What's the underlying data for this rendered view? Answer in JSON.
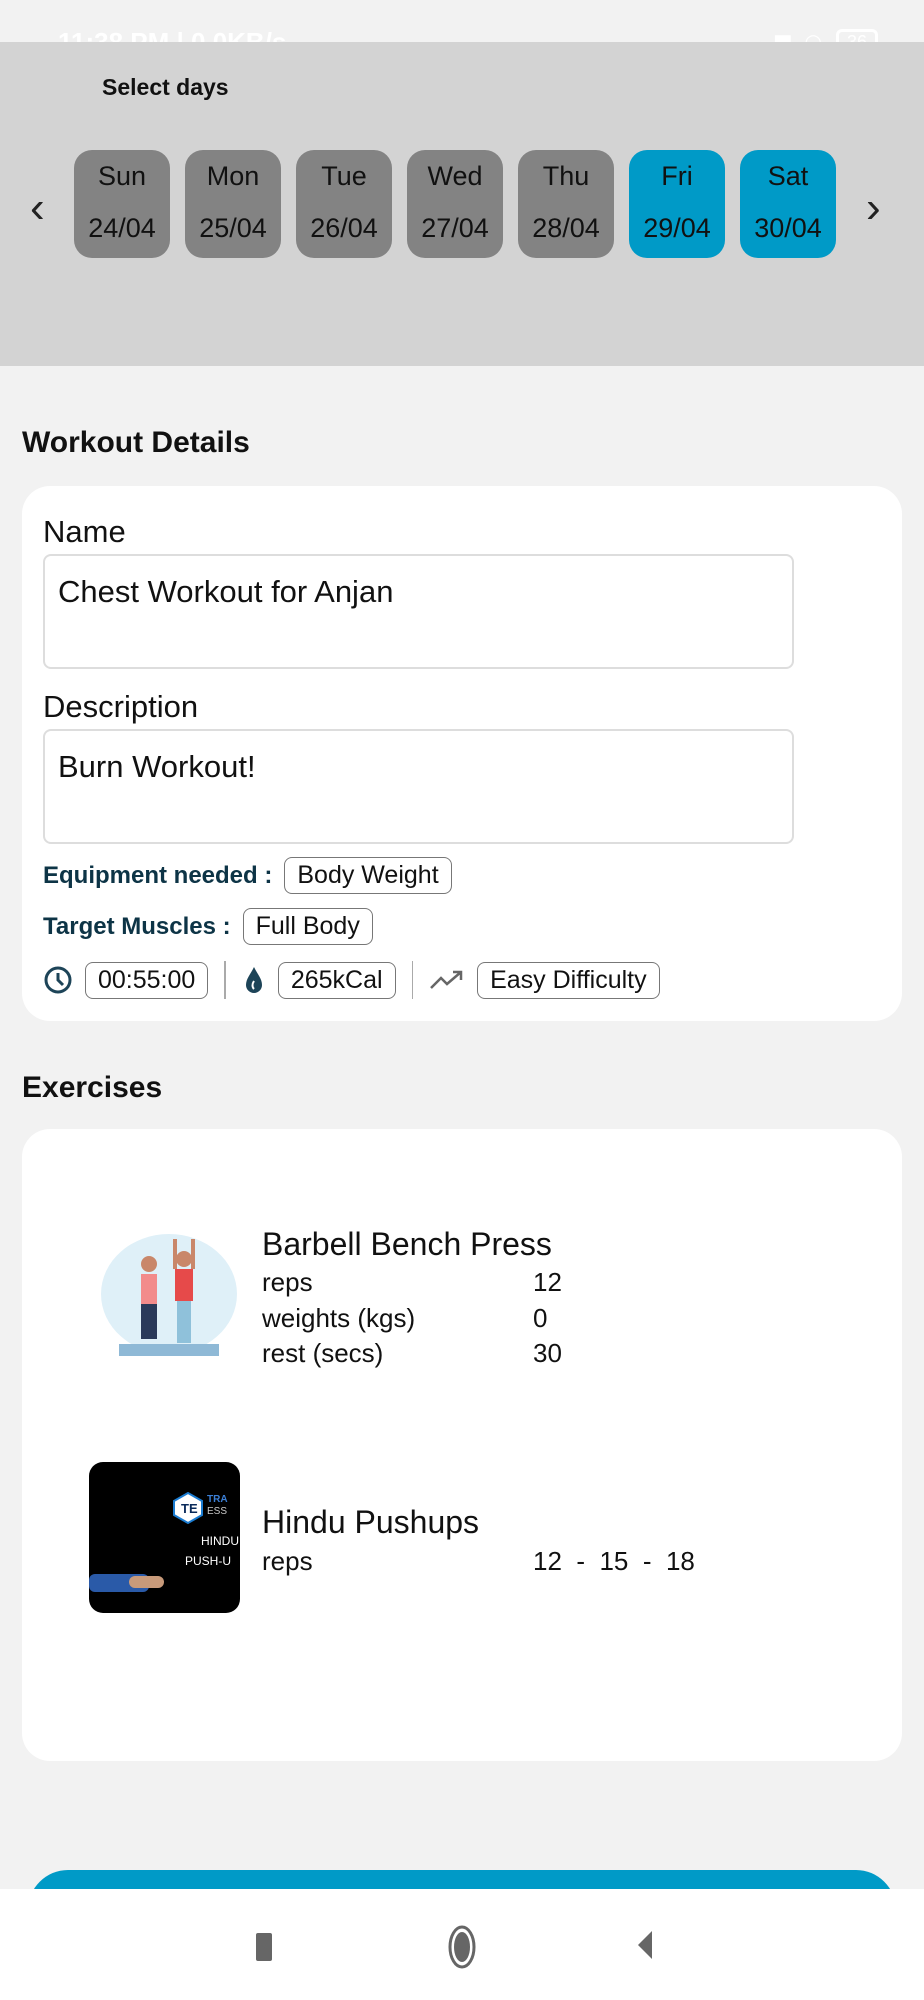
{
  "status_bar": {
    "time": "11:38 PM | 0.0KB/s",
    "battery": "36"
  },
  "day_selector": {
    "title": "Select days",
    "days": [
      {
        "name": "Sun",
        "date": "24/04",
        "selected": false
      },
      {
        "name": "Mon",
        "date": "25/04",
        "selected": false
      },
      {
        "name": "Tue",
        "date": "26/04",
        "selected": false
      },
      {
        "name": "Wed",
        "date": "27/04",
        "selected": false
      },
      {
        "name": "Thu",
        "date": "28/04",
        "selected": false
      },
      {
        "name": "Fri",
        "date": "29/04",
        "selected": true
      },
      {
        "name": "Sat",
        "date": "30/04",
        "selected": true
      }
    ]
  },
  "workout": {
    "heading": "Workout Details",
    "name_label": "Name",
    "name_value": "Chest Workout for Anjan",
    "description_label": "Description",
    "description_value": "Burn Workout!",
    "equipment_label": "Equipment needed :",
    "equipment": "Body Weight",
    "muscles_label": "Target Muscles :",
    "muscles": "Full Body",
    "duration": "00:55:00",
    "calories": "265kCal",
    "difficulty": "Easy Difficulty"
  },
  "exercises": {
    "heading": "Exercises",
    "items": [
      {
        "title": "Barbell Bench Press",
        "rows": [
          {
            "k": "reps",
            "v": "12"
          },
          {
            "k": "weights (kgs)",
            "v": "0"
          },
          {
            "k": "rest (secs)",
            "v": "30"
          }
        ]
      },
      {
        "title": "Hindu Pushups",
        "rows": [
          {
            "k": "reps",
            "v": "12  -  15  -  18"
          }
        ],
        "thumb_text": [
          "TRA",
          "ESS",
          "HINDU",
          "PUSH-U"
        ]
      }
    ]
  },
  "colors": {
    "accent": "#009ac7",
    "chip_off": "#838383",
    "label_dark": "#0d3446"
  }
}
